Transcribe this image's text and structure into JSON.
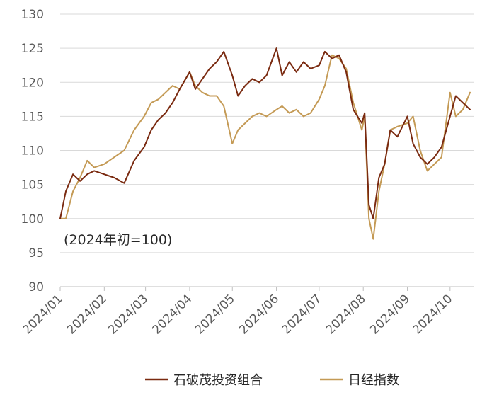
{
  "chart_data": {
    "type": "line",
    "title": "",
    "xlabel": "",
    "ylabel": "",
    "annotation": "(2024年初=100)",
    "ylim": [
      90,
      130
    ],
    "yticks": [
      90,
      95,
      100,
      105,
      110,
      115,
      120,
      125,
      130
    ],
    "xticks": [
      "2024/01",
      "2024/02",
      "2024/03",
      "2024/04",
      "2024/05",
      "2024/06",
      "2024/07",
      "2024/08",
      "2024/09",
      "2024/10"
    ],
    "grid": "horizontal",
    "legend_position": "bottom",
    "x": [
      "2024/01/01",
      "2024/01/05",
      "2024/01/10",
      "2024/01/15",
      "2024/01/20",
      "2024/01/25",
      "2024/02/01",
      "2024/02/08",
      "2024/02/15",
      "2024/02/22",
      "2024/02/29",
      "2024/03/05",
      "2024/03/10",
      "2024/03/15",
      "2024/03/20",
      "2024/03/25",
      "2024/04/01",
      "2024/04/05",
      "2024/04/10",
      "2024/04/15",
      "2024/04/20",
      "2024/04/25",
      "2024/05/01",
      "2024/05/05",
      "2024/05/10",
      "2024/05/15",
      "2024/05/20",
      "2024/05/25",
      "2024/06/01",
      "2024/06/05",
      "2024/06/10",
      "2024/06/15",
      "2024/06/20",
      "2024/06/25",
      "2024/07/01",
      "2024/07/05",
      "2024/07/10",
      "2024/07/15",
      "2024/07/20",
      "2024/07/25",
      "2024/07/31",
      "2024/08/02",
      "2024/08/05",
      "2024/08/08",
      "2024/08/12",
      "2024/08/16",
      "2024/08/20",
      "2024/08/25",
      "2024/09/01",
      "2024/09/05",
      "2024/09/10",
      "2024/09/15",
      "2024/09/20",
      "2024/09/25",
      "2024/10/01",
      "2024/10/05",
      "2024/10/10",
      "2024/10/15"
    ],
    "series": [
      {
        "name": "石破茂投资组合",
        "color": "#7a2a10",
        "values": [
          100,
          104,
          106.5,
          105.5,
          106.5,
          107,
          106.5,
          106,
          105.2,
          108.5,
          110.5,
          113,
          114.5,
          115.5,
          117,
          119,
          121.5,
          119,
          120.5,
          122,
          123,
          124.5,
          121,
          118,
          119.5,
          120.5,
          120,
          121,
          125,
          121,
          123,
          121.5,
          123,
          122,
          122.5,
          124.5,
          123.5,
          124,
          121.5,
          116,
          114,
          115.5,
          102,
          100,
          106,
          108,
          113,
          112,
          115,
          111,
          109,
          108,
          109,
          110.5,
          115,
          118,
          117,
          116
        ]
      },
      {
        "name": "日经指数",
        "color": "#c49a55",
        "values": [
          100,
          100,
          104,
          106,
          108.5,
          107.5,
          108,
          109,
          110,
          113,
          115,
          117,
          117.5,
          118.5,
          119.5,
          119,
          121.5,
          119.5,
          118.5,
          118,
          118,
          116.5,
          111,
          113,
          114,
          115,
          115.5,
          115,
          116,
          116.5,
          115.5,
          116,
          115,
          115.5,
          117.5,
          119.5,
          124,
          123.5,
          122,
          117,
          113,
          115,
          100,
          97,
          104,
          108,
          113,
          113.5,
          114,
          115,
          110,
          107,
          108,
          109,
          118.5,
          115,
          116,
          118.5
        ]
      }
    ]
  }
}
